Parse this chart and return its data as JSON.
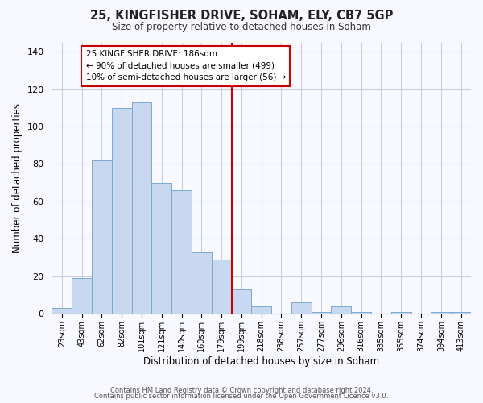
{
  "title": "25, KINGFISHER DRIVE, SOHAM, ELY, CB7 5GP",
  "subtitle": "Size of property relative to detached houses in Soham",
  "xlabel": "Distribution of detached houses by size in Soham",
  "ylabel": "Number of detached properties",
  "bar_labels": [
    "23sqm",
    "43sqm",
    "62sqm",
    "82sqm",
    "101sqm",
    "121sqm",
    "140sqm",
    "160sqm",
    "179sqm",
    "199sqm",
    "218sqm",
    "238sqm",
    "257sqm",
    "277sqm",
    "296sqm",
    "316sqm",
    "335sqm",
    "355sqm",
    "374sqm",
    "394sqm",
    "413sqm"
  ],
  "bar_heights": [
    3,
    19,
    82,
    110,
    113,
    70,
    66,
    33,
    29,
    13,
    4,
    0,
    6,
    1,
    4,
    1,
    0,
    1,
    0,
    1,
    1
  ],
  "bar_color": "#c8d8f0",
  "bar_edge_color": "#7aaad0",
  "vline_x": 8.5,
  "vline_color": "#cc0000",
  "annotation_line1": "25 KINGFISHER DRIVE: 186sqm",
  "annotation_line2": "← 90% of detached houses are smaller (499)",
  "annotation_line3": "10% of semi-detached houses are larger (56) →",
  "annotation_box_color": "#ffffff",
  "annotation_box_edgecolor": "#cc0000",
  "ylim": [
    0,
    145
  ],
  "yticks": [
    0,
    20,
    40,
    60,
    80,
    100,
    120,
    140
  ],
  "footer1": "Contains HM Land Registry data © Crown copyright and database right 2024.",
  "footer2": "Contains public sector information licensed under the Open Government Licence v3.0.",
  "background_color": "#f8f8ff",
  "grid_color": "#ccccdd"
}
